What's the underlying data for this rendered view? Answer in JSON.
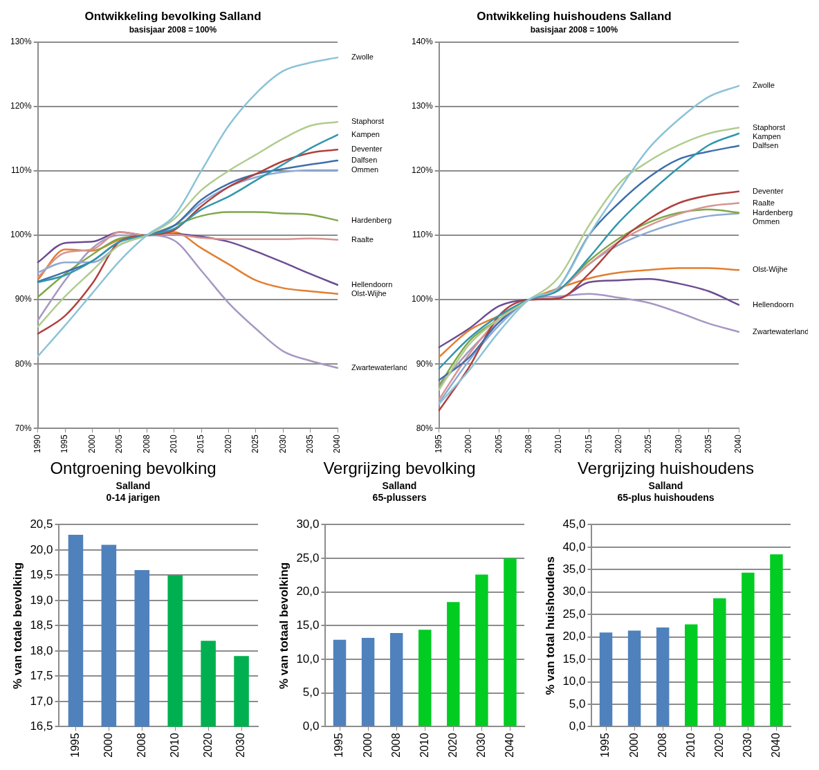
{
  "chart_data": [
    {
      "type": "line",
      "title": "Ontwikkeling bevolking Salland",
      "subtitle": "basisjaar 2008 = 100%",
      "categories": [
        "1990",
        "1995",
        "2000",
        "2005",
        "2008",
        "2010",
        "2015",
        "2020",
        "2025",
        "2030",
        "2035",
        "2040"
      ],
      "ylim": [
        70,
        130
      ],
      "yticks": [
        {
          "value": 70,
          "label": "70%"
        },
        {
          "value": 80,
          "label": "80%"
        },
        {
          "value": 90,
          "label": "90%"
        },
        {
          "value": 100,
          "label": "100%"
        },
        {
          "value": 110,
          "label": "110%"
        },
        {
          "value": 120,
          "label": "120%"
        },
        {
          "value": 130,
          "label": "130%"
        }
      ],
      "grid": "y",
      "legend": false,
      "marker": "none",
      "series": [
        {
          "name": "Zwolle",
          "color": "#8bc3d6",
          "values": [
            81.2,
            86,
            91,
            96,
            100,
            103,
            110,
            117,
            122,
            125.5,
            126.8,
            127.6
          ]
        },
        {
          "name": "Staphorst",
          "color": "#b0cc8e",
          "values": [
            85.8,
            90.5,
            94.5,
            98.5,
            100,
            102.5,
            107,
            110,
            112.5,
            115,
            117,
            117.6
          ]
        },
        {
          "name": "Kampen",
          "color": "#3196ad",
          "values": [
            92.7,
            93.8,
            96,
            99,
            100,
            101,
            104,
            106,
            108.5,
            111,
            113.5,
            115.6
          ]
        },
        {
          "name": "Deventer",
          "color": "#b0403d",
          "values": [
            84.7,
            87.5,
            92.5,
            99,
            100,
            100.8,
            104.5,
            107.5,
            109.5,
            111.5,
            112.8,
            113.3
          ]
        },
        {
          "name": "Dalfsen",
          "color": "#3e6eaa",
          "values": [
            92.8,
            94.3,
            96,
            99,
            100,
            101.5,
            105.5,
            108,
            109.5,
            110.3,
            111,
            111.6
          ]
        },
        {
          "name": "Ommen",
          "color": "#8eaad4",
          "values": [
            94.2,
            95.8,
            95.8,
            98.5,
            100,
            101.5,
            105,
            107.5,
            109,
            109.8,
            110.1,
            110.1
          ]
        },
        {
          "name": "Hardenberg",
          "color": "#7fa84a",
          "values": [
            90.4,
            94,
            97,
            99.5,
            100,
            101.5,
            103,
            103.6,
            103.6,
            103.4,
            103.2,
            102.3
          ]
        },
        {
          "name": "Raalte",
          "color": "#d69492",
          "values": [
            93.5,
            97.3,
            97.8,
            100.5,
            100,
            100.1,
            99.6,
            99.4,
            99.4,
            99.4,
            99.5,
            99.3
          ]
        },
        {
          "name": "Hellendoorn",
          "color": "#6b4c94",
          "values": [
            95.8,
            98.8,
            99,
            100.5,
            100,
            100.2,
            99.8,
            99,
            97.5,
            95.8,
            94,
            92.3
          ]
        },
        {
          "name": "Olst-Wijhe",
          "color": "#e27e30",
          "values": [
            93.1,
            97.8,
            97.6,
            99.3,
            100,
            100.5,
            98,
            95.5,
            93,
            91.8,
            91.3,
            90.9
          ]
        },
        {
          "name": "Zwartewaterland",
          "color": "#a697c2",
          "values": [
            86.8,
            93,
            98,
            100,
            100,
            99.2,
            94.5,
            89.5,
            85.5,
            82,
            80.5,
            79.4
          ]
        }
      ]
    },
    {
      "type": "line",
      "title": "Ontwikkeling huishoudens Salland",
      "subtitle": "basisjaar 2008 = 100%",
      "categories": [
        "1995",
        "2000",
        "2005",
        "2008",
        "2010",
        "2015",
        "2020",
        "2025",
        "2030",
        "2035",
        "2040"
      ],
      "ylim": [
        80,
        140
      ],
      "yticks": [
        {
          "value": 80,
          "label": "80%"
        },
        {
          "value": 90,
          "label": "90%"
        },
        {
          "value": 100,
          "label": "100%"
        },
        {
          "value": 110,
          "label": "110%"
        },
        {
          "value": 120,
          "label": "120%"
        },
        {
          "value": 130,
          "label": "130%"
        },
        {
          "value": 140,
          "label": "140%"
        }
      ],
      "grid": "y",
      "legend": false,
      "marker": "none",
      "series": [
        {
          "name": "Zwolle",
          "color": "#8bc3d6",
          "values": [
            83.8,
            89,
            95,
            100,
            102,
            110,
            117,
            123.5,
            128,
            131.5,
            133.2
          ]
        },
        {
          "name": "Staphorst",
          "color": "#b0cc8e",
          "values": [
            86,
            93,
            97,
            100,
            103.5,
            111.5,
            118,
            121.5,
            124,
            125.8,
            126.7
          ]
        },
        {
          "name": "Kampen",
          "color": "#3196ad",
          "values": [
            89.3,
            94,
            97.5,
            100,
            101.5,
            106.5,
            112,
            116.5,
            120.5,
            124,
            125.8
          ]
        },
        {
          "name": "Dalfsen",
          "color": "#3e6eaa",
          "values": [
            87.5,
            91,
            96.5,
            100,
            102,
            110,
            115,
            119,
            121.8,
            123,
            123.9
          ]
        },
        {
          "name": "Deventer",
          "color": "#b0403d",
          "values": [
            82.8,
            89.5,
            97.5,
            100,
            100.2,
            104,
            109,
            112.5,
            115,
            116.2,
            116.8
          ]
        },
        {
          "name": "Raalte",
          "color": "#d69492",
          "values": [
            84.5,
            91.5,
            97,
            100,
            101.5,
            105.5,
            109,
            111.5,
            113.3,
            114.5,
            115
          ]
        },
        {
          "name": "Hardenberg",
          "color": "#7fa84a",
          "values": [
            86.7,
            93.5,
            97,
            100,
            101.5,
            106,
            109.5,
            112,
            113.5,
            114,
            113.5
          ]
        },
        {
          "name": "Ommen",
          "color": "#8eaad4",
          "values": [
            84,
            90.5,
            96,
            100,
            101.5,
            105.5,
            108.5,
            110.5,
            112,
            113,
            113.4
          ]
        },
        {
          "name": "Olst-Wijhe",
          "color": "#e27e30",
          "values": [
            91.1,
            95.2,
            97.5,
            100,
            101.8,
            103.3,
            104.2,
            104.6,
            104.9,
            104.9,
            104.6
          ]
        },
        {
          "name": "Hellendoorn",
          "color": "#6b4c94",
          "values": [
            92.6,
            95.5,
            99,
            100,
            100.2,
            102.7,
            103,
            103.2,
            102.5,
            101.3,
            99.2
          ]
        },
        {
          "name": "Zwartewaterland",
          "color": "#a697c2",
          "values": [
            86.5,
            92,
            96.5,
            100,
            100.5,
            100.9,
            100.3,
            99.5,
            98,
            96.3,
            95
          ]
        }
      ]
    },
    {
      "type": "bar",
      "title": "Ontgroening bevolking",
      "subtitle": "Salland\n0-14 jarigen",
      "ylabel": "% van totale bevolking",
      "categories": [
        "1995",
        "2000",
        "2008",
        "2010",
        "2020",
        "2030"
      ],
      "values": [
        20.3,
        20.1,
        19.6,
        19.5,
        18.2,
        17.9
      ],
      "colors": [
        "#4f81bd",
        "#4f81bd",
        "#4f81bd",
        "#00b050",
        "#00b050",
        "#00b050"
      ],
      "ylim": [
        16.5,
        20.5
      ],
      "yticks": [
        {
          "value": 16.5,
          "label": "16,5"
        },
        {
          "value": 17,
          "label": "17,0"
        },
        {
          "value": 17.5,
          "label": "17,5"
        },
        {
          "value": 18,
          "label": "18,0"
        },
        {
          "value": 18.5,
          "label": "18,5"
        },
        {
          "value": 19,
          "label": "19,0"
        },
        {
          "value": 19.5,
          "label": "19,5"
        },
        {
          "value": 20,
          "label": "20,0"
        },
        {
          "value": 20.5,
          "label": "20,5"
        }
      ],
      "grid": "y",
      "legend": false
    },
    {
      "type": "bar",
      "title": "Vergrijzing bevolking",
      "subtitle": "Salland\n65-plussers",
      "ylabel": "% van totaal bevolking",
      "categories": [
        "1995",
        "2000",
        "2008",
        "2010",
        "2020",
        "2030",
        "2040"
      ],
      "values": [
        12.9,
        13.2,
        13.9,
        14.4,
        18.5,
        22.6,
        25.0
      ],
      "colors": [
        "#4f81bd",
        "#4f81bd",
        "#4f81bd",
        "#00cc22",
        "#00cc22",
        "#00cc22",
        "#00cc22"
      ],
      "ylim": [
        0,
        30
      ],
      "yticks": [
        {
          "value": 0,
          "label": "0,0"
        },
        {
          "value": 5,
          "label": "5,0"
        },
        {
          "value": 10,
          "label": "10,0"
        },
        {
          "value": 15,
          "label": "15,0"
        },
        {
          "value": 20,
          "label": "20,0"
        },
        {
          "value": 25,
          "label": "25,0"
        },
        {
          "value": 30,
          "label": "30,0"
        }
      ],
      "grid": "y",
      "legend": false
    },
    {
      "type": "bar",
      "title": "Vergrijzing huishoudens",
      "subtitle": "Salland\n65-plus huishoudens",
      "ylabel": "% van total huishoudens",
      "categories": [
        "1995",
        "2000",
        "2008",
        "2010",
        "2020",
        "2030",
        "2040"
      ],
      "values": [
        21.0,
        21.4,
        22.1,
        22.8,
        28.6,
        34.3,
        38.4
      ],
      "colors": [
        "#4f81bd",
        "#4f81bd",
        "#4f81bd",
        "#00cc22",
        "#00cc22",
        "#00cc22",
        "#00cc22"
      ],
      "ylim": [
        0,
        45
      ],
      "yticks": [
        {
          "value": 0,
          "label": "0,0"
        },
        {
          "value": 5,
          "label": "5,0"
        },
        {
          "value": 10,
          "label": "10,0"
        },
        {
          "value": 15,
          "label": "15,0"
        },
        {
          "value": 20,
          "label": "20,0"
        },
        {
          "value": 25,
          "label": "25,0"
        },
        {
          "value": 30,
          "label": "30,0"
        },
        {
          "value": 35,
          "label": "35,0"
        },
        {
          "value": 40,
          "label": "40,0"
        },
        {
          "value": 45,
          "label": "45,0"
        }
      ],
      "grid": "y",
      "legend": false
    }
  ]
}
